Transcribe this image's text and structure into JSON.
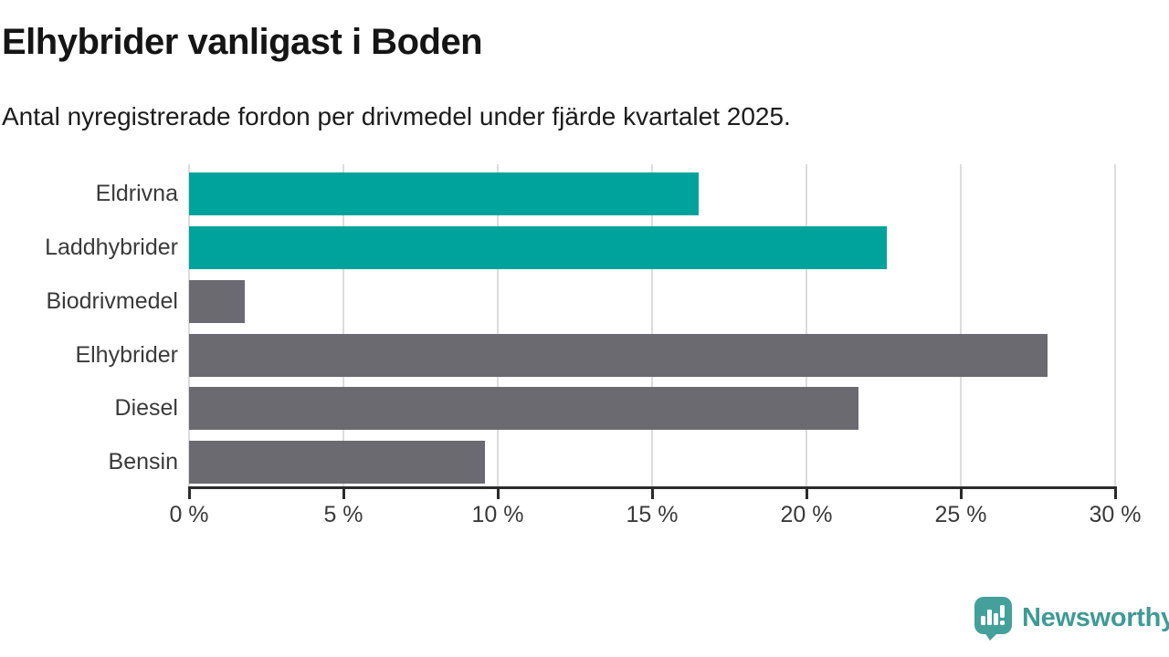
{
  "header": {
    "title": "Elhybrider vanligast i Boden",
    "subtitle": "Antal nyregistrerade fordon per drivmedel under fjärde kvartalet 2025."
  },
  "chart_data": {
    "type": "bar",
    "orientation": "horizontal",
    "title": "Elhybrider vanligast i Boden",
    "subtitle": "Antal nyregistrerade fordon per drivmedel under fjärde kvartalet 2025.",
    "categories": [
      "Eldrivna",
      "Laddhybrider",
      "Biodrivmedel",
      "Elhybrider",
      "Diesel",
      "Bensin"
    ],
    "values": [
      16.5,
      22.6,
      1.8,
      27.8,
      21.7,
      9.6
    ],
    "unit": "%",
    "bar_colors": [
      "#00a39b",
      "#00a39b",
      "#6b6a70",
      "#6b6a70",
      "#6b6a70",
      "#6b6a70"
    ],
    "xlabel": "",
    "ylabel": "",
    "xlim": [
      0,
      30
    ],
    "x_ticks": [
      0,
      5,
      10,
      15,
      20,
      25,
      30
    ],
    "x_tick_labels": [
      "0 %",
      "5 %",
      "10 %",
      "15 %",
      "20 %",
      "25 %",
      "30 %"
    ],
    "grid": true,
    "legend": "none"
  },
  "footer": {
    "brand": "Newsworthy",
    "logo_icon": "speech-bubble-bar-chart-icon"
  },
  "colors": {
    "accent_teal": "#00a39b",
    "neutral_gray": "#6b6a70",
    "axis": "#2b2b2b",
    "gridline": "#dcdcdc",
    "title_text": "#151515",
    "label_text": "#3a3a3a",
    "logo_teal": "#43a09a",
    "logo_text_teal": "#3f9a94"
  }
}
